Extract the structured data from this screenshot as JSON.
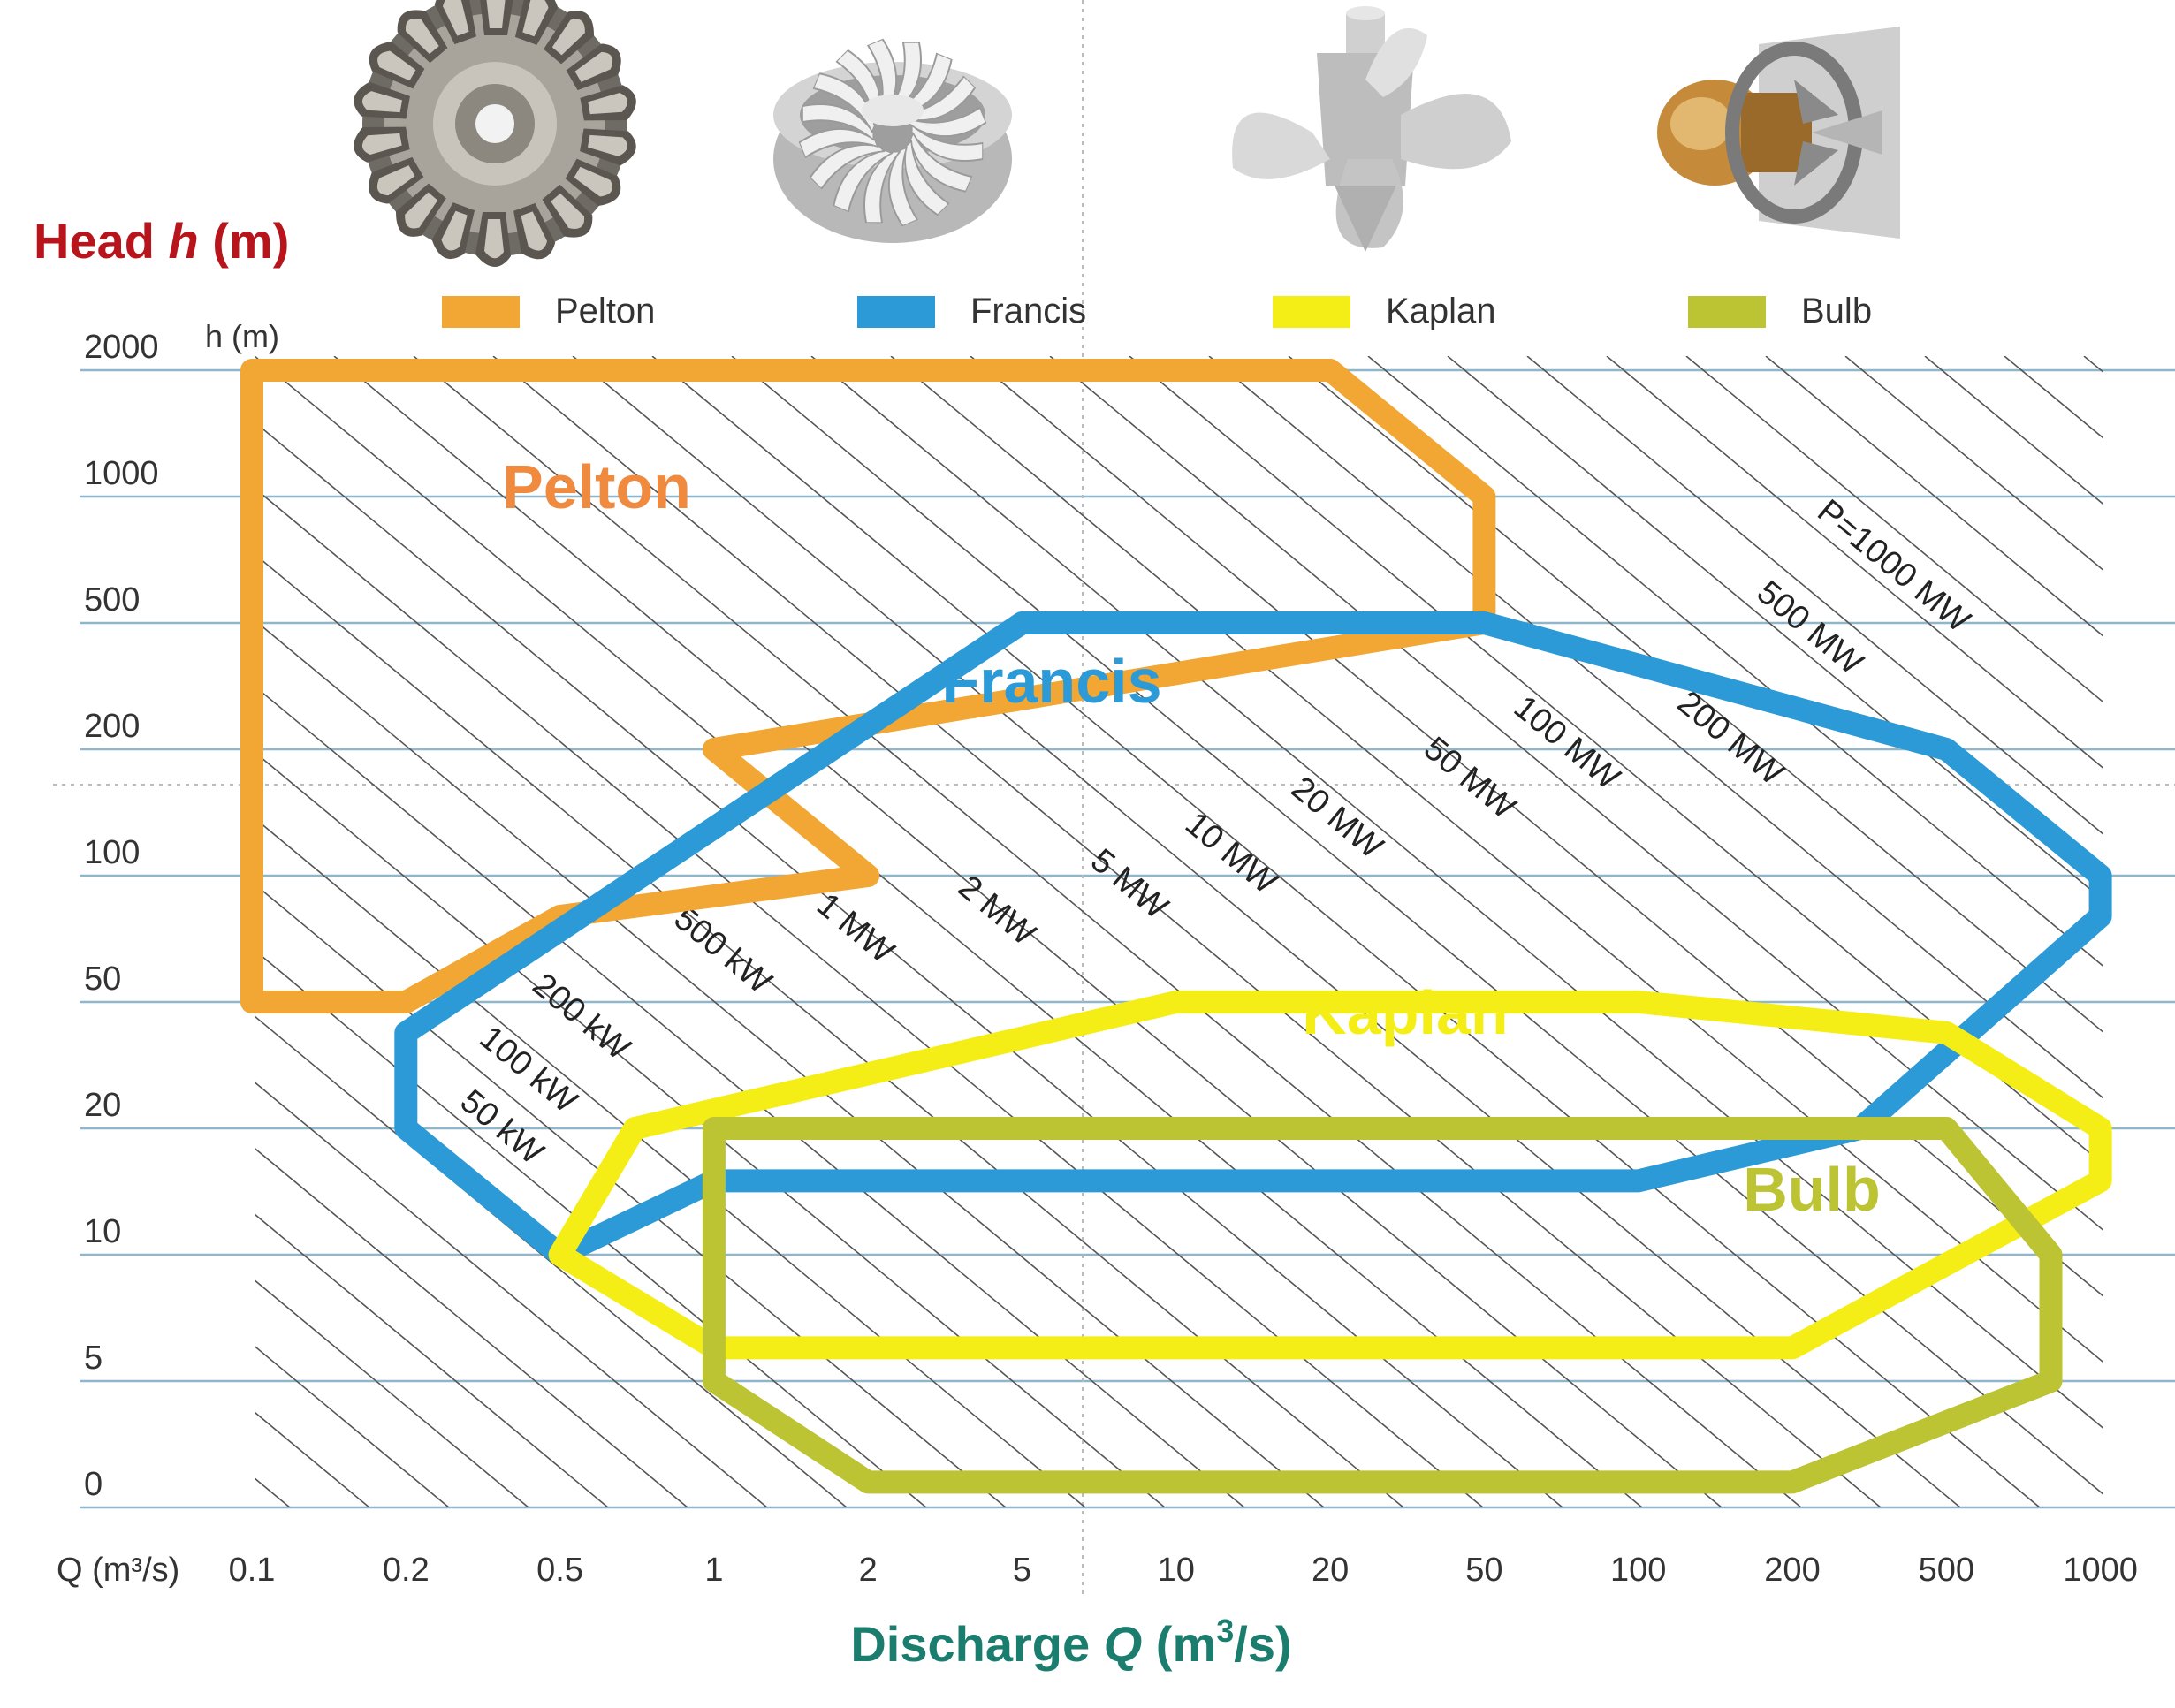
{
  "chart_data": {
    "type": "area",
    "title": "",
    "ylabel": {
      "prefix": "Head ",
      "symbol": "h",
      "suffix": " (m)"
    },
    "xlabel": {
      "prefix": "Discharge ",
      "symbol": "Q",
      "suffix": " (m",
      "sup": "3",
      "tail": "/s)"
    },
    "y_axis_inner_label": "h (m)",
    "x_axis_inner_label": "Q (m³/s)",
    "y_ticks": [
      "0",
      "5",
      "10",
      "20",
      "50",
      "100",
      "200",
      "500",
      "1000",
      "2000"
    ],
    "x_ticks": [
      "0.1",
      "0.2",
      "0.5",
      "1",
      "2",
      "5",
      "10",
      "20",
      "50",
      "100",
      "200",
      "500",
      "1000"
    ],
    "power_lines": [
      "50 kW",
      "100 kW",
      "200 kW",
      "500 kW",
      "1 MW",
      "2 MW",
      "5 MW",
      "10 MW",
      "20 MW",
      "50 MW",
      "100 MW",
      "200 MW",
      "500 MW",
      "P=1000 MW"
    ],
    "legend": {
      "placement": "top",
      "entries": [
        "Pelton",
        "Francis",
        "Kaplan",
        "Bulb"
      ]
    },
    "regions": [
      {
        "name": "Pelton",
        "label": "Pelton",
        "color": "#f2a633",
        "label_color": "#f08a3e",
        "polygon": [
          [
            0.1,
            2000
          ],
          [
            20,
            2000
          ],
          [
            50,
            1000
          ],
          [
            50,
            500
          ],
          [
            1,
            200
          ],
          [
            2,
            100
          ],
          [
            0.5,
            80
          ],
          [
            0.2,
            50
          ],
          [
            0.1,
            50
          ]
        ]
      },
      {
        "name": "Francis",
        "label": "Francis",
        "color": "#2b9ad6",
        "label_color": "#2b9ad6",
        "polygon": [
          [
            5,
            500
          ],
          [
            50,
            500
          ],
          [
            500,
            200
          ],
          [
            1000,
            100
          ],
          [
            1000,
            80
          ],
          [
            300,
            20
          ],
          [
            100,
            15
          ],
          [
            1,
            15
          ],
          [
            0.5,
            10
          ],
          [
            0.2,
            20
          ],
          [
            0.2,
            40
          ]
        ]
      },
      {
        "name": "Kaplan",
        "label": "Kaplan",
        "color": "#f5ee16",
        "label_color": "#f5ee16",
        "polygon": [
          [
            10,
            50
          ],
          [
            100,
            50
          ],
          [
            500,
            40
          ],
          [
            1000,
            20
          ],
          [
            1000,
            15
          ],
          [
            200,
            6
          ],
          [
            1,
            6
          ],
          [
            0.5,
            10
          ],
          [
            0.7,
            20
          ]
        ]
      },
      {
        "name": "Bulb",
        "label": "Bulb",
        "color": "#bcc434",
        "label_color": "#bcc434",
        "polygon": [
          [
            1,
            20
          ],
          [
            500,
            20
          ],
          [
            800,
            10
          ],
          [
            800,
            5
          ],
          [
            200,
            1
          ],
          [
            2,
            1
          ],
          [
            1,
            5
          ]
        ]
      }
    ]
  }
}
